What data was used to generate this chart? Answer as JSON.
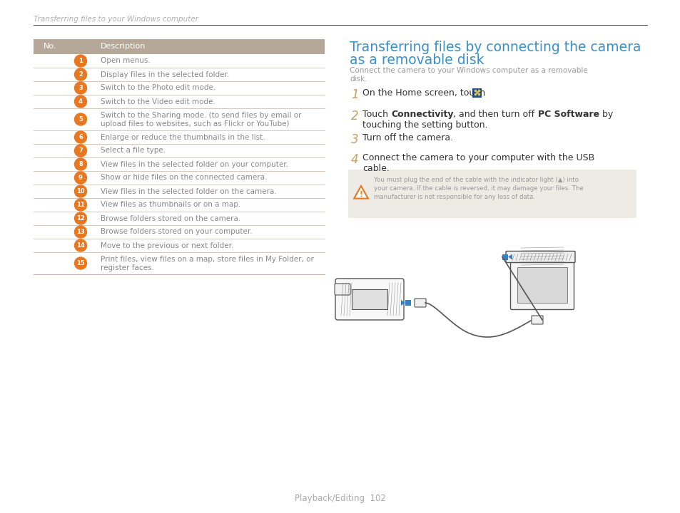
{
  "bg_color": "#ffffff",
  "page_header": "Transferring files to your Windows computer",
  "header_color": "#b0b0b0",
  "divider_color": "#555555",
  "table_header_bg": "#b5a898",
  "table_header_text_color": "#ffffff",
  "table_border_color": "#c8b49a",
  "table_text_color": "#888888",
  "orange_color": "#e87722",
  "col1_header": "No.",
  "col2_header": "Description",
  "rows": [
    [
      "1",
      "Open menus."
    ],
    [
      "2",
      "Display files in the selected folder."
    ],
    [
      "3",
      "Switch to the Photo edit mode."
    ],
    [
      "4",
      "Switch to the Video edit mode."
    ],
    [
      "5",
      "Switch to the Sharing mode. (to send files by email or\nupload files to websites, such as Flickr or YouTube)"
    ],
    [
      "6",
      "Enlarge or reduce the thumbnails in the list."
    ],
    [
      "7",
      "Select a file type."
    ],
    [
      "8",
      "View files in the selected folder on your computer."
    ],
    [
      "9",
      "Show or hide files on the connected camera."
    ],
    [
      "10",
      "View files in the selected folder on the camera."
    ],
    [
      "11",
      "View files as thumbnails or on a map."
    ],
    [
      "12",
      "Browse folders stored on the camera."
    ],
    [
      "13",
      "Browse folders stored on your computer."
    ],
    [
      "14",
      "Move to the previous or next folder."
    ],
    [
      "15",
      "Print files, view files on a map, store files in My Folder, or\nregister faces."
    ]
  ],
  "right_title_line1": "Transferring files by connecting the camera",
  "right_title_line2": "as a removable disk",
  "title_color": "#3b8fc4",
  "subtitle_line1": "Connect the camera to your Windows computer as a removable",
  "subtitle_line2": "disk.",
  "subtitle_color": "#999999",
  "step_num_color": "#c8a060",
  "step_text_color": "#444444",
  "step_text_dark_color": "#333333",
  "step1_text": "On the Home screen, touch",
  "step2_parts": [
    "Touch ",
    "Connectivity",
    ", and then turn off ",
    "PC Software",
    " by"
  ],
  "step2_bold": [
    false,
    true,
    false,
    true,
    false
  ],
  "step2_line2": "touching the setting button.",
  "step3_text": "Turn off the camera.",
  "step4_line1": "Connect the camera to your computer with the USB",
  "step4_line2": "cable.",
  "warn_bg": "#eeebe4",
  "warn_icon_color": "#e87722",
  "warn_text_line1": "You must plug the end of the cable with the indicator light (▲) into",
  "warn_text_line2": "your camera. If the cable is reversed, it may damage your files. The",
  "warn_text_line3": "manufacturer is not responsible for any loss of data.",
  "warn_text_color": "#999999",
  "footer": "Playback/Editing  102",
  "footer_color": "#aaaaaa",
  "line_art_color": "#555555",
  "blue_connector_color": "#3a7fc1"
}
